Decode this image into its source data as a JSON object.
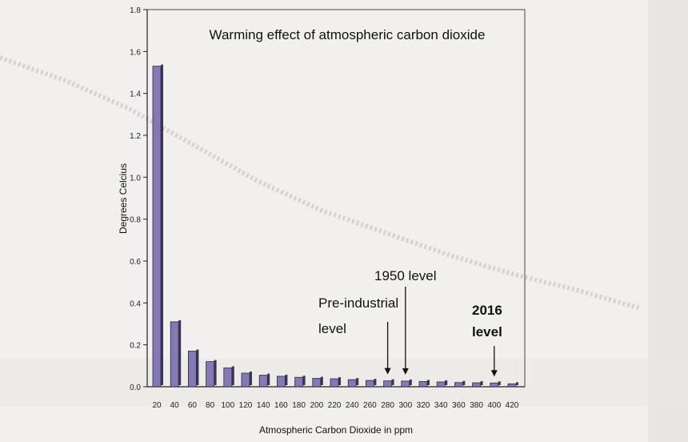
{
  "chart_data": {
    "type": "bar",
    "title": "Warming effect of atmospheric carbon dioxide",
    "xlabel": "Atmospheric Carbon Dioxide in ppm",
    "ylabel": "Degrees Celcius",
    "ylim": [
      0,
      1.8
    ],
    "yticks": [
      "0.0",
      "0.2",
      "0.4",
      "0.6",
      "0.8",
      "1.0",
      "1.2",
      "1.4",
      "1.6",
      "1.8"
    ],
    "grid": false,
    "categories": [
      "20",
      "40",
      "60",
      "80",
      "100",
      "120",
      "140",
      "160",
      "180",
      "200",
      "220",
      "240",
      "260",
      "280",
      "300",
      "320",
      "340",
      "360",
      "380",
      "400",
      "420"
    ],
    "values": [
      1.53,
      0.31,
      0.17,
      0.12,
      0.09,
      0.065,
      0.055,
      0.05,
      0.045,
      0.04,
      0.038,
      0.034,
      0.03,
      0.028,
      0.027,
      0.025,
      0.023,
      0.02,
      0.019,
      0.018,
      0.014
    ],
    "bar_color": "#8678b4",
    "annotations": [
      {
        "lines": [
          "Pre-industrial",
          "level"
        ],
        "target": "280",
        "bold": false
      },
      {
        "lines": [
          "1950 level"
        ],
        "target": "300",
        "bold": false
      },
      {
        "lines": [
          "2016",
          "level"
        ],
        "target": "400",
        "bold": true
      }
    ]
  }
}
